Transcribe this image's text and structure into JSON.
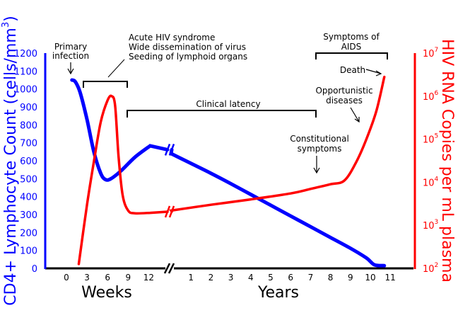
{
  "chart_data": {
    "type": "line",
    "title": "",
    "x_segments": [
      {
        "label": "Weeks",
        "ticks": [
          0,
          3,
          6,
          9,
          12
        ]
      },
      {
        "label": "Years",
        "ticks": [
          1,
          2,
          3,
          4,
          5,
          6,
          7,
          8,
          9,
          10,
          11
        ]
      }
    ],
    "left_axis": {
      "label": "CD4+ Lymphocyte Count (cells/mm³)",
      "label_main": "CD4+ Lymphocyte Count (cells/mm",
      "label_sup": "3",
      "label_end": ")",
      "ylim": [
        0,
        1200
      ],
      "ticks": [
        0,
        100,
        200,
        300,
        400,
        500,
        600,
        700,
        800,
        900,
        1000,
        1100,
        1200
      ],
      "color": "#0000ff"
    },
    "right_axis": {
      "label": "HIV RNA Copies per mL plasma",
      "scale": "log",
      "ylim": [
        100,
        10000000
      ],
      "tick_exponents": [
        "2",
        "3",
        "4",
        "5",
        "6",
        "7"
      ],
      "tick_base": "10",
      "color": "#ff0000"
    },
    "series": [
      {
        "key": "cd4",
        "axis": "left",
        "color": "#0000ff",
        "weeks": [
          [
            0.8,
            1050
          ],
          [
            1.3,
            1040
          ],
          [
            2,
            980
          ],
          [
            3,
            830
          ],
          [
            4,
            650
          ],
          [
            5,
            530
          ],
          [
            5.7,
            495
          ],
          [
            6.5,
            500
          ],
          [
            8,
            545
          ],
          [
            10,
            620
          ],
          [
            12.2,
            683
          ]
        ],
        "years": [
          [
            0,
            640
          ],
          [
            1,
            585
          ],
          [
            2,
            530
          ],
          [
            3,
            472
          ],
          [
            4,
            412
          ],
          [
            5,
            352
          ],
          [
            6,
            292
          ],
          [
            7,
            232
          ],
          [
            8,
            172
          ],
          [
            9,
            112
          ],
          [
            9.8,
            58
          ],
          [
            10.2,
            20
          ],
          [
            10.7,
            15
          ]
        ]
      },
      {
        "key": "rna",
        "axis": "right",
        "color": "#ff0000",
        "weeks": [
          [
            1.8,
            126
          ],
          [
            3,
            3000
          ],
          [
            4,
            30000
          ],
          [
            5,
            250000
          ],
          [
            6,
            800000
          ],
          [
            6.6,
            1000000
          ],
          [
            7.1,
            600000
          ],
          [
            7.6,
            40000
          ],
          [
            8.2,
            5000
          ],
          [
            9,
            2200
          ],
          [
            10,
            1900
          ],
          [
            12.2,
            1950
          ]
        ],
        "years": [
          [
            0,
            2200
          ],
          [
            2,
            3000
          ],
          [
            4,
            4000
          ],
          [
            6,
            5500
          ],
          [
            7,
            7000
          ],
          [
            8,
            9000
          ],
          [
            8.7,
            11000
          ],
          [
            9.3,
            30000
          ],
          [
            9.8,
            100000
          ],
          [
            10.3,
            450000
          ],
          [
            10.7,
            2800000
          ]
        ]
      }
    ],
    "annotations": {
      "primary_infection": [
        "Primary",
        "infection"
      ],
      "acute": [
        "Acute HIV syndrome",
        "Wide dissemination of virus",
        "Seeding of lymphoid organs"
      ],
      "clinical_latency": "Clinical latency",
      "aids": [
        "Symptoms of",
        "AIDS"
      ],
      "death": "Death",
      "opportunistic": [
        "Opportunistic",
        "diseases"
      ],
      "constitutional": [
        "Constitutional",
        "symptoms"
      ]
    },
    "grid": false,
    "legend": "none"
  }
}
